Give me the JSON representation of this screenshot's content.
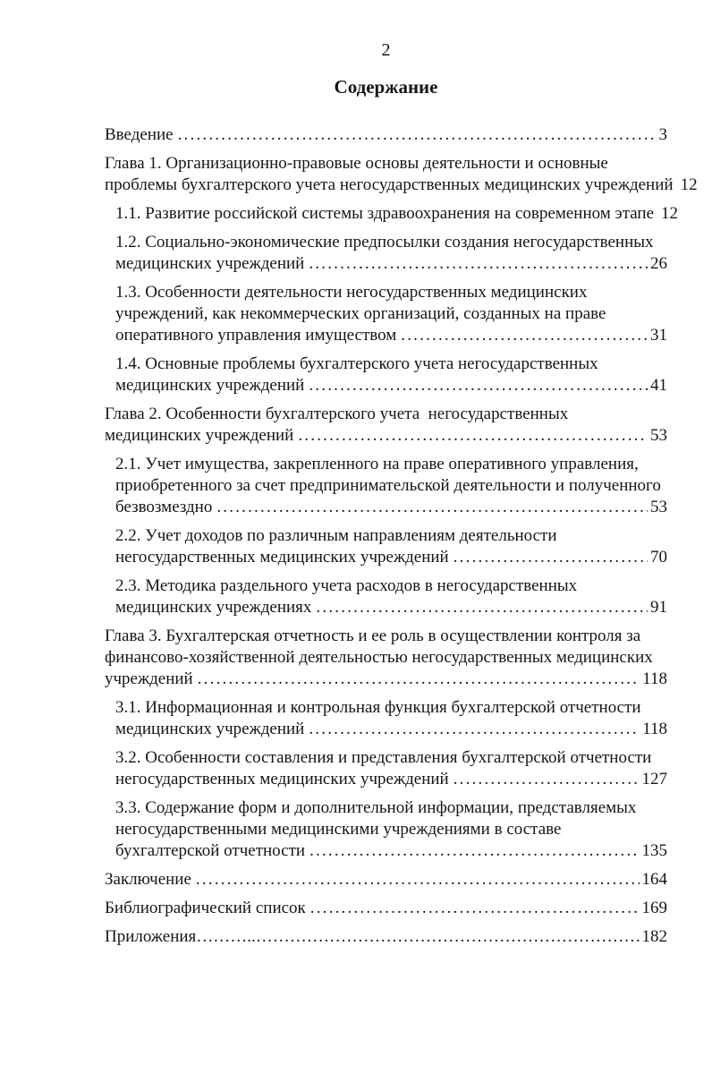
{
  "page": {
    "number": "2",
    "title": "Содержание"
  },
  "toc": {
    "entries": [
      {
        "level": 0,
        "lines": [],
        "last": "Введение",
        "page": "3",
        "leader": "dots"
      },
      {
        "level": 0,
        "lines": [
          "Глава 1. Организационно-правовые основы деятельности и основные"
        ],
        "last": "проблемы бухгалтерского учета негосударственных медицинских учреждений",
        "page": "12",
        "leader": "dots"
      },
      {
        "level": 1,
        "lines": [],
        "last": "1.1. Развитие российской системы здравоохранения на современном этапе",
        "page": "12",
        "leader": "dots"
      },
      {
        "level": 1,
        "lines": [
          "1.2. Социально-экономические предпосылки создания негосударственных"
        ],
        "last": "медицинских учреждений",
        "page": "26",
        "leader": "dots"
      },
      {
        "level": 1,
        "lines": [
          "1.3. Особенности деятельности негосударственных медицинских",
          "учреждений, как некоммерческих организаций, созданных на праве"
        ],
        "last": "оперативного управления имуществом",
        "page": "31",
        "leader": "dots"
      },
      {
        "level": 1,
        "lines": [
          "1.4. Основные проблемы бухгалтерского учета негосударственных"
        ],
        "last": "медицинских учреждений",
        "page": "41",
        "leader": "dots"
      },
      {
        "level": 0,
        "lines": [
          "Глава 2. Особенности бухгалтерского учета  негосударственных"
        ],
        "last": "медицинских учреждений",
        "page": "53",
        "leader": "dots"
      },
      {
        "level": 1,
        "lines": [
          "2.1. Учет имущества, закрепленного на праве оперативного управления,",
          "приобретенного за счет предпринимательской деятельности и полученного"
        ],
        "last": "безвозмездно",
        "page": "53",
        "leader": "dots"
      },
      {
        "level": 1,
        "lines": [
          "2.2. Учет доходов по различным направлениям деятельности"
        ],
        "last": "негосударственных медицинских учреждений",
        "page": "70",
        "leader": "dots"
      },
      {
        "level": 1,
        "lines": [
          "2.3. Методика раздельного учета расходов в негосударственных"
        ],
        "last": "медицинских учреждениях",
        "page": "91",
        "leader": "dots"
      },
      {
        "level": 0,
        "lines": [
          "Глава 3. Бухгалтерская отчетность и ее роль в осуществлении контроля за",
          "финансово-хозяйственной деятельностью негосударственных медицинских"
        ],
        "last": "учреждений",
        "page": "118",
        "leader": "dots"
      },
      {
        "level": 1,
        "lines": [
          "3.1. Информационная и контрольная функция бухгалтерской отчетности"
        ],
        "last": "медицинских учреждений",
        "page": "118",
        "leader": "dots"
      },
      {
        "level": 1,
        "lines": [
          "3.2. Особенности составления и представления бухгалтерской отчетности"
        ],
        "last": "негосударственных медицинских учреждений",
        "page": "127",
        "leader": "dots"
      },
      {
        "level": 1,
        "lines": [
          "3.3. Содержание форм и дополнительной информации, представляемых",
          "негосударственными медицинскими учреждениями в составе"
        ],
        "last": "бухгалтерской отчетности",
        "page": "135",
        "leader": "dots"
      },
      {
        "level": 0,
        "lines": [],
        "last": "Заключение",
        "page": "164",
        "leader": "dots"
      },
      {
        "level": 0,
        "lines": [],
        "last": "Библиографический список",
        "page": "169",
        "leader": "dots"
      },
      {
        "level": 0,
        "lines": [],
        "last": "Приложения",
        "page": "182",
        "leader": "ellipsis"
      }
    ]
  }
}
